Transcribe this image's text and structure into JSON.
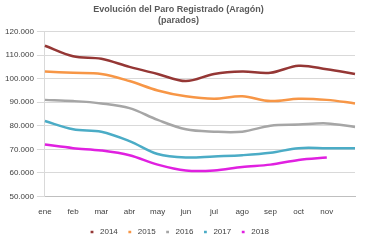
{
  "chart_data": {
    "type": "line",
    "title": "Evolución del Paro Registrado (Aragón)",
    "subtitle": "(parados)",
    "categories": [
      "ene",
      "feb",
      "mar",
      "abr",
      "may",
      "jun",
      "jul",
      "ago",
      "sep",
      "oct",
      "nov",
      null
    ],
    "series": [
      {
        "name": "2014",
        "color": "#953735",
        "values": [
          114000,
          109500,
          108500,
          105000,
          102000,
          99000,
          102000,
          103000,
          102500,
          105500,
          104000,
          102000
        ]
      },
      {
        "name": "2015",
        "color": "#f79646",
        "values": [
          103000,
          102500,
          102000,
          99000,
          95000,
          92500,
          91500,
          92500,
          90500,
          91500,
          91000,
          89500
        ]
      },
      {
        "name": "2016",
        "color": "#a6a6a6",
        "values": [
          91000,
          90500,
          89500,
          87500,
          82500,
          78500,
          77500,
          77500,
          80000,
          80500,
          81000,
          79500
        ]
      },
      {
        "name": "2017",
        "color": "#4bacc6",
        "values": [
          82000,
          78500,
          77500,
          73500,
          68000,
          66500,
          67000,
          67500,
          68500,
          70500,
          70500,
          70500
        ]
      },
      {
        "name": "2018",
        "color": "#e020e0",
        "values": [
          72000,
          70500,
          69500,
          67500,
          63500,
          61000,
          61000,
          62500,
          63500,
          65500,
          66500,
          null
        ]
      }
    ],
    "ylim": [
      50000,
      120000
    ],
    "yticks": [
      {
        "value": 50000,
        "label": "50.000"
      },
      {
        "value": 60000,
        "label": "60.000"
      },
      {
        "value": 70000,
        "label": "70.000"
      },
      {
        "value": 80000,
        "label": "80.000"
      },
      {
        "value": 90000,
        "label": "90.000"
      },
      {
        "value": 100000,
        "label": "100.000"
      },
      {
        "value": 110000,
        "label": "110.000"
      },
      {
        "value": 120000,
        "label": "120.000"
      }
    ],
    "grid": true,
    "legend": "bottom"
  }
}
